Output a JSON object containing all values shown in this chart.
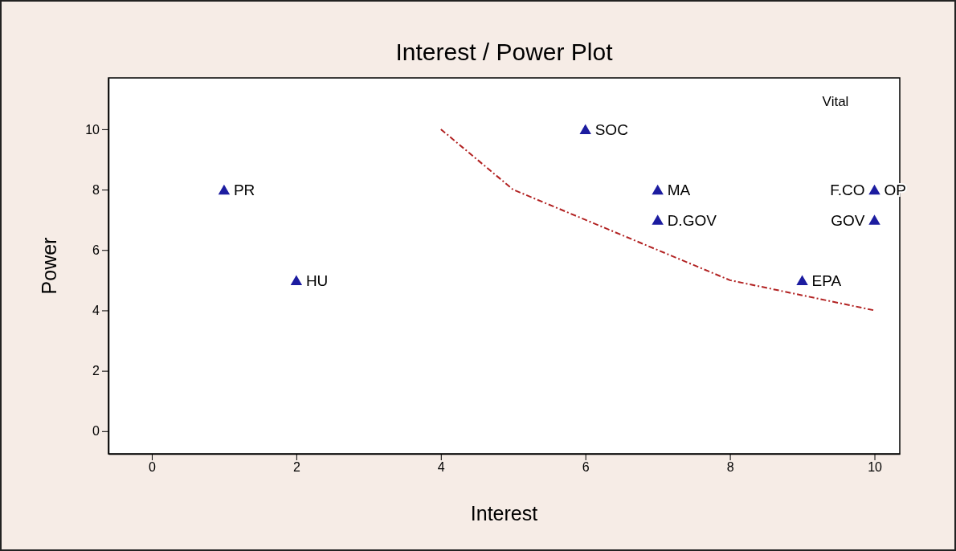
{
  "chart_data": {
    "type": "scatter",
    "title": "Interest / Power Plot",
    "xlabel": "Interest",
    "ylabel": "Power",
    "xlim": [
      -0.6,
      10.35
    ],
    "ylim": [
      -0.75,
      11.7
    ],
    "xticks": [
      0,
      2,
      4,
      6,
      8,
      10
    ],
    "yticks": [
      0,
      2,
      4,
      6,
      8,
      10
    ],
    "grid": false,
    "marker": "triangle",
    "series": [
      {
        "color": "#1c1ca0",
        "x": [
          1,
          2,
          6,
          7,
          7,
          10,
          10,
          9
        ],
        "values": [
          8,
          5,
          10,
          8,
          7,
          8,
          7,
          5
        ]
      },
      {
        "type": "line",
        "color": "#b22222",
        "line_style": "dashed",
        "marker": "none",
        "x": [
          4,
          5,
          6,
          7,
          8,
          9,
          10
        ],
        "values": [
          10,
          8,
          7,
          6,
          5,
          4.5,
          4
        ]
      }
    ],
    "annotations": [
      "Vital",
      {
        "text": "PR",
        "x": 1,
        "y": 8
      },
      {
        "text": "HU",
        "x": 2,
        "y": 5
      },
      {
        "text": "SOC",
        "x": 6,
        "y": 10
      },
      {
        "text": "MA",
        "x": 7,
        "y": 8
      },
      {
        "text": "D.GOV",
        "x": 7,
        "y": 7
      },
      {
        "text": "OP",
        "x": 10,
        "y": 8
      },
      {
        "text": "F.CO",
        "x": 10,
        "y": 8
      },
      {
        "text": "GOV",
        "x": 10,
        "y": 7
      },
      {
        "text": "EPA",
        "x": 9,
        "y": 5
      }
    ]
  }
}
